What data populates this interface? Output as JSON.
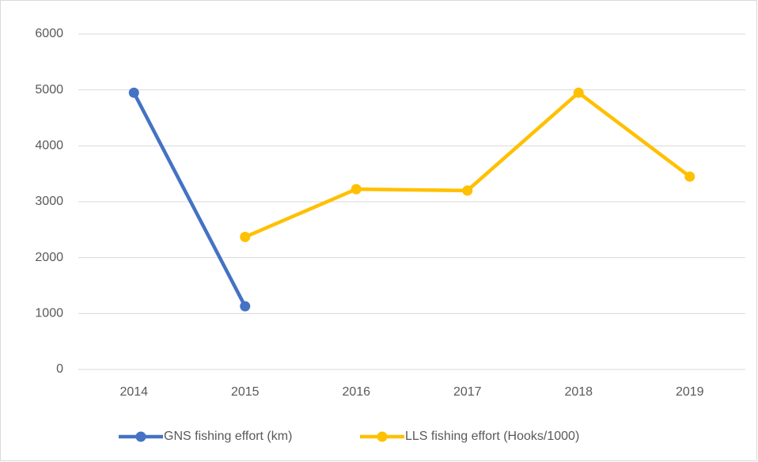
{
  "chart_data": {
    "type": "line",
    "categories": [
      "2014",
      "2015",
      "2016",
      "2017",
      "2018",
      "2019"
    ],
    "series": [
      {
        "name": "GNS fishing effort (km)",
        "color": "#4472c4",
        "values": [
          4950,
          1130,
          null,
          null,
          null,
          null
        ]
      },
      {
        "name": "LLS fishing effort (Hooks/1000)",
        "color": "#ffc000",
        "values": [
          null,
          2370,
          3225,
          3200,
          4950,
          3450
        ]
      }
    ],
    "ylim": [
      0,
      6000
    ],
    "yticks": [
      0,
      1000,
      2000,
      3000,
      4000,
      5000,
      6000
    ],
    "grid": true,
    "legend": "bottom"
  }
}
